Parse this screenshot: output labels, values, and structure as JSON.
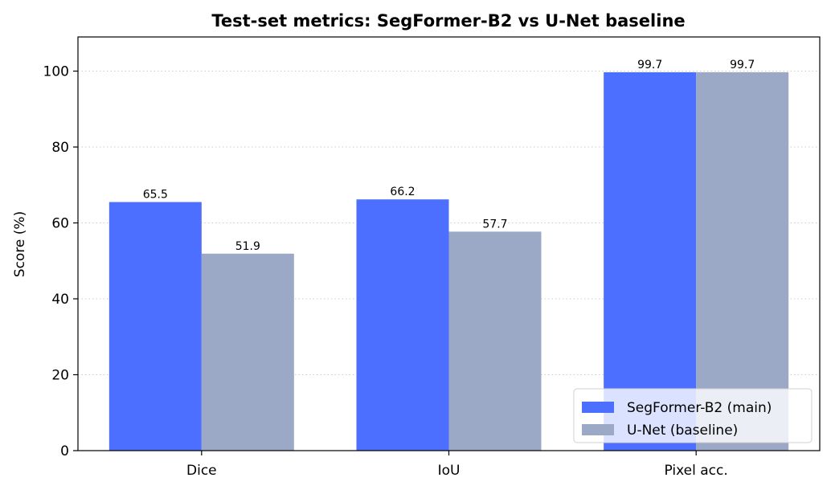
{
  "chart_data": {
    "type": "bar",
    "title": "Test-set metrics: SegFormer-B2 vs U-Net baseline",
    "xlabel": "",
    "ylabel": "Score (%)",
    "ylim": [
      0,
      109
    ],
    "yticks": [
      0,
      20,
      40,
      60,
      80,
      100
    ],
    "grid": "y-dotted",
    "legend_position": "bottom-right",
    "categories": [
      "Dice",
      "IoU",
      "Pixel acc."
    ],
    "series": [
      {
        "name": "SegFormer-B2 (main)",
        "color": "#4d6fff",
        "values": [
          65.5,
          66.2,
          99.7
        ],
        "labels": [
          "65.5",
          "66.2",
          "99.7"
        ]
      },
      {
        "name": "U-Net (baseline)",
        "color": "#9ba8c6",
        "values": [
          51.9,
          57.7,
          99.7
        ],
        "labels": [
          "51.9",
          "57.7",
          "99.7"
        ]
      }
    ]
  }
}
